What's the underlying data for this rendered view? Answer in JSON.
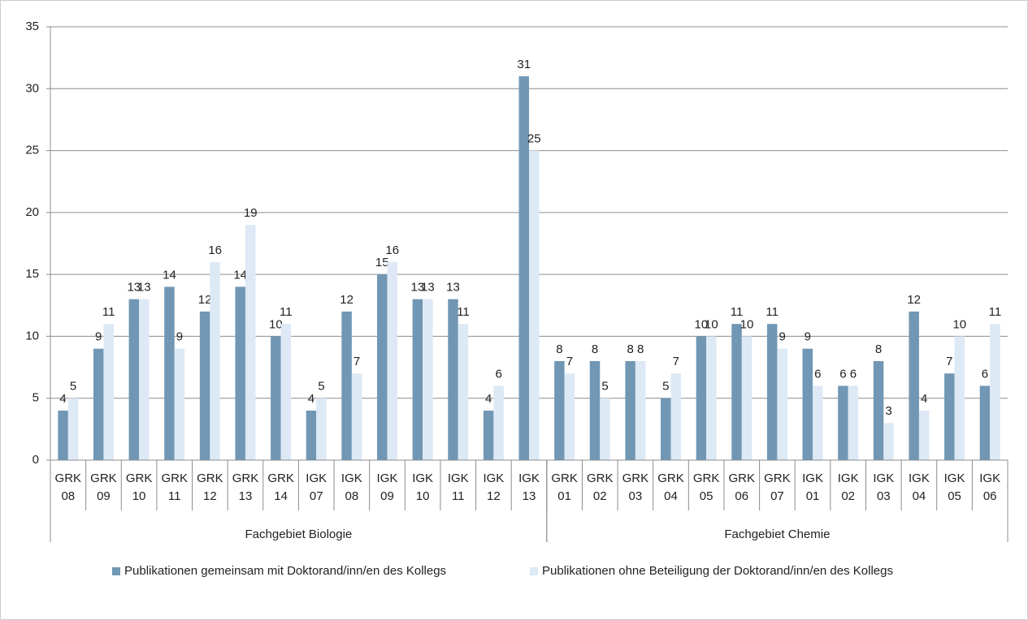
{
  "chart_data": {
    "type": "bar",
    "groups": [
      {
        "name": "Fachgebiet Biologie",
        "categories": [
          [
            "GRK",
            "08"
          ],
          [
            "GRK",
            "09"
          ],
          [
            "GRK",
            "10"
          ],
          [
            "GRK",
            "11"
          ],
          [
            "GRK",
            "12"
          ],
          [
            "GRK",
            "13"
          ],
          [
            "GRK",
            "14"
          ],
          [
            "IGK",
            "07"
          ],
          [
            "IGK",
            "08"
          ],
          [
            "IGK",
            "09"
          ],
          [
            "IGK",
            "10"
          ],
          [
            "IGK",
            "11"
          ],
          [
            "IGK",
            "12"
          ],
          [
            "IGK",
            "13"
          ]
        ]
      },
      {
        "name": "Fachgebiet Chemie",
        "categories": [
          [
            "GRK",
            "01"
          ],
          [
            "GRK",
            "02"
          ],
          [
            "GRK",
            "03"
          ],
          [
            "GRK",
            "04"
          ],
          [
            "GRK",
            "05"
          ],
          [
            "GRK",
            "06"
          ],
          [
            "GRK",
            "07"
          ],
          [
            "IGK",
            "01"
          ],
          [
            "IGK",
            "02"
          ],
          [
            "IGK",
            "03"
          ],
          [
            "IGK",
            "04"
          ],
          [
            "IGK",
            "05"
          ],
          [
            "IGK",
            "06"
          ]
        ]
      }
    ],
    "series": [
      {
        "name": "Publikationen gemeinsam mit Doktorand/inn/en des Kollegs",
        "color": "#7197b4",
        "values": [
          4,
          9,
          13,
          14,
          12,
          14,
          10,
          4,
          12,
          15,
          13,
          13,
          4,
          31,
          8,
          8,
          8,
          5,
          10,
          11,
          11,
          9,
          6,
          8,
          12,
          7,
          6
        ]
      },
      {
        "name": "Publikationen ohne Beteiligung der Doktorand/inn/en des Kollegs",
        "color": "#dde9f5",
        "values": [
          5,
          11,
          13,
          9,
          16,
          19,
          11,
          5,
          7,
          16,
          13,
          11,
          6,
          25,
          7,
          5,
          8,
          7,
          10,
          10,
          9,
          6,
          6,
          3,
          4,
          10,
          11
        ]
      }
    ],
    "ylim": [
      0,
      35
    ],
    "yticks": [
      0,
      5,
      10,
      15,
      20,
      25,
      30,
      35
    ],
    "grid": true,
    "legend": "bottom"
  }
}
